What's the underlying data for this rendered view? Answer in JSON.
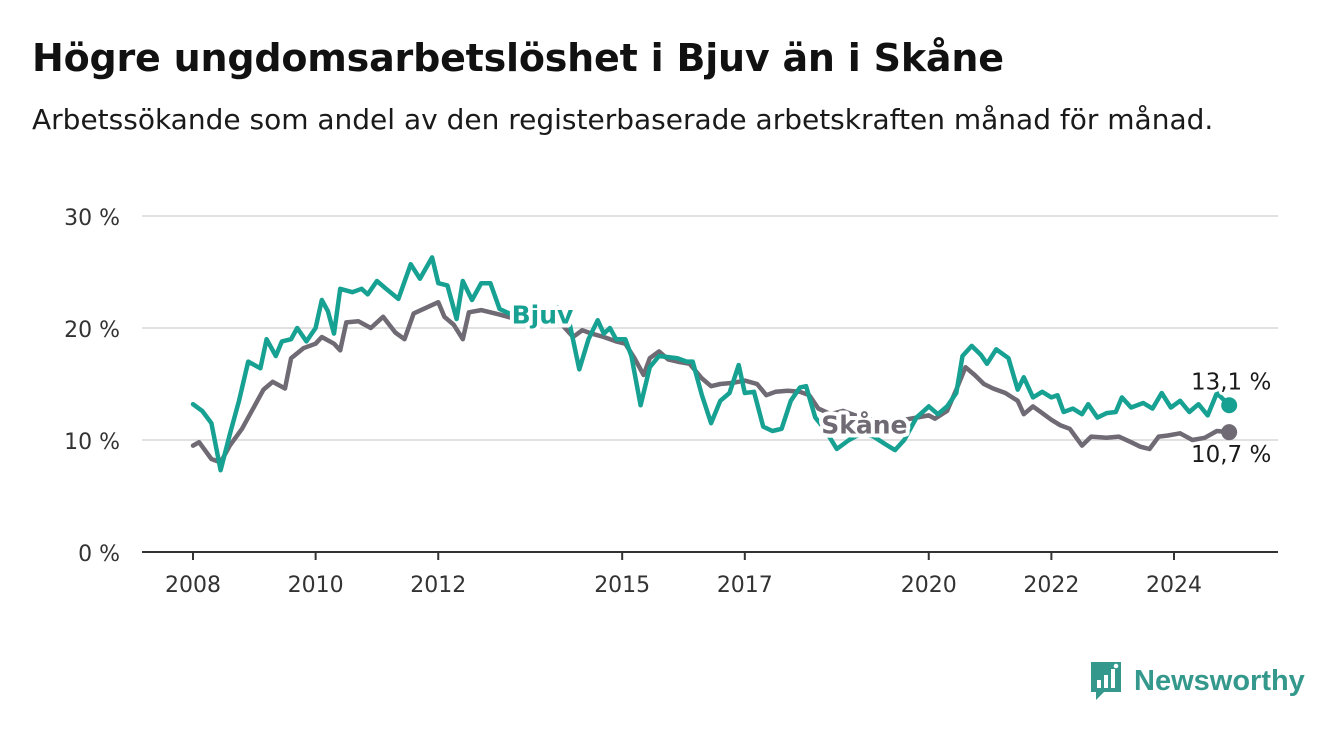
{
  "header": {
    "title": "Högre ungdomsarbetslöshet i Bjuv än i Skåne",
    "subtitle": "Arbetssökande som andel av den registerbaserade arbetskraften månad för månad."
  },
  "brand": {
    "name": "Newsworthy",
    "icon": "newsworthy-logo-icon",
    "color": "#34988c"
  },
  "chart_data": {
    "type": "line",
    "title": "Högre ungdomsarbetslöshet i Bjuv än i Skåne",
    "subtitle": "Arbetssökande som andel av den registerbaserade arbetskraften månad för månad.",
    "xlabel": "",
    "ylabel": "",
    "xlim": [
      2008,
      2026
    ],
    "ylim": [
      0,
      30
    ],
    "x_ticks": [
      {
        "value": 2008,
        "label": "2008"
      },
      {
        "value": 2010,
        "label": "2010"
      },
      {
        "value": 2012,
        "label": "2012"
      },
      {
        "value": 2015,
        "label": "2015"
      },
      {
        "value": 2017,
        "label": "2017"
      },
      {
        "value": 2020,
        "label": "2020"
      },
      {
        "value": 2022,
        "label": "2022"
      },
      {
        "value": 2024,
        "label": "2024"
      }
    ],
    "y_ticks": [
      {
        "value": 0,
        "label": "0 %"
      },
      {
        "value": 10,
        "label": "10 %"
      },
      {
        "value": 20,
        "label": "20 %"
      },
      {
        "value": 30,
        "label": "30 %"
      }
    ],
    "grid": true,
    "legend": "inline labels",
    "series": [
      {
        "name": "Bjuv",
        "color": "#17a192",
        "end_label": "13,1 %",
        "label_at": [
          2013.7,
          20.4
        ],
        "points": [
          [
            2008.0,
            13.2
          ],
          [
            2008.15,
            12.6
          ],
          [
            2008.3,
            11.5
          ],
          [
            2008.45,
            7.3
          ],
          [
            2008.6,
            10.5
          ],
          [
            2008.75,
            13.5
          ],
          [
            2008.9,
            17.0
          ],
          [
            2009.1,
            16.4
          ],
          [
            2009.2,
            19.0
          ],
          [
            2009.35,
            17.5
          ],
          [
            2009.45,
            18.8
          ],
          [
            2009.6,
            19.0
          ],
          [
            2009.7,
            20.0
          ],
          [
            2009.85,
            18.8
          ],
          [
            2010.0,
            20.0
          ],
          [
            2010.1,
            22.5
          ],
          [
            2010.2,
            21.5
          ],
          [
            2010.3,
            19.5
          ],
          [
            2010.4,
            23.5
          ],
          [
            2010.6,
            23.2
          ],
          [
            2010.75,
            23.5
          ],
          [
            2010.85,
            23.0
          ],
          [
            2011.0,
            24.2
          ],
          [
            2011.15,
            23.5
          ],
          [
            2011.35,
            22.6
          ],
          [
            2011.55,
            25.7
          ],
          [
            2011.7,
            24.4
          ],
          [
            2011.9,
            26.3
          ],
          [
            2012.0,
            24.0
          ],
          [
            2012.15,
            23.8
          ],
          [
            2012.3,
            20.8
          ],
          [
            2012.4,
            24.2
          ],
          [
            2012.55,
            22.5
          ],
          [
            2012.7,
            24.0
          ],
          [
            2012.85,
            24.0
          ],
          [
            2013.0,
            21.7
          ],
          [
            2013.2,
            21.2
          ],
          [
            2013.4,
            20.3
          ],
          [
            2013.6,
            20.8
          ],
          [
            2013.8,
            21.5
          ],
          [
            2013.95,
            21.8
          ],
          [
            2014.1,
            21.5
          ],
          [
            2014.3,
            16.3
          ],
          [
            2014.45,
            19.0
          ],
          [
            2014.6,
            20.7
          ],
          [
            2014.7,
            19.5
          ],
          [
            2014.8,
            20.0
          ],
          [
            2014.9,
            19.0
          ],
          [
            2015.05,
            19.0
          ],
          [
            2015.15,
            17.5
          ],
          [
            2015.3,
            13.1
          ],
          [
            2015.45,
            16.5
          ],
          [
            2015.6,
            17.5
          ],
          [
            2015.75,
            17.4
          ],
          [
            2015.9,
            17.3
          ],
          [
            2016.05,
            17.0
          ],
          [
            2016.15,
            17.0
          ],
          [
            2016.3,
            14.0
          ],
          [
            2016.45,
            11.5
          ],
          [
            2016.6,
            13.5
          ],
          [
            2016.75,
            14.2
          ],
          [
            2016.9,
            16.7
          ],
          [
            2017.0,
            14.2
          ],
          [
            2017.15,
            14.3
          ],
          [
            2017.3,
            11.2
          ],
          [
            2017.45,
            10.8
          ],
          [
            2017.6,
            11.0
          ],
          [
            2017.75,
            13.5
          ],
          [
            2017.9,
            14.7
          ],
          [
            2018.0,
            14.8
          ],
          [
            2018.15,
            12.0
          ],
          [
            2018.3,
            11.0
          ],
          [
            2018.5,
            9.2
          ],
          [
            2018.7,
            10.0
          ],
          [
            2018.9,
            10.6
          ],
          [
            2019.1,
            10.3
          ],
          [
            2019.3,
            9.6
          ],
          [
            2019.45,
            9.1
          ],
          [
            2019.6,
            10.0
          ],
          [
            2019.8,
            12.0
          ],
          [
            2020.0,
            13.0
          ],
          [
            2020.15,
            12.3
          ],
          [
            2020.3,
            13.0
          ],
          [
            2020.45,
            14.2
          ],
          [
            2020.55,
            17.5
          ],
          [
            2020.7,
            18.4
          ],
          [
            2020.85,
            17.6
          ],
          [
            2020.95,
            16.8
          ],
          [
            2021.1,
            18.1
          ],
          [
            2021.3,
            17.3
          ],
          [
            2021.45,
            14.5
          ],
          [
            2021.55,
            15.6
          ],
          [
            2021.7,
            13.8
          ],
          [
            2021.85,
            14.3
          ],
          [
            2022.0,
            13.8
          ],
          [
            2022.1,
            14.0
          ],
          [
            2022.2,
            12.5
          ],
          [
            2022.35,
            12.8
          ],
          [
            2022.5,
            12.3
          ],
          [
            2022.6,
            13.2
          ],
          [
            2022.75,
            12.0
          ],
          [
            2022.9,
            12.4
          ],
          [
            2023.05,
            12.5
          ],
          [
            2023.15,
            13.8
          ],
          [
            2023.3,
            12.9
          ],
          [
            2023.5,
            13.3
          ],
          [
            2023.65,
            12.8
          ],
          [
            2023.8,
            14.2
          ],
          [
            2023.95,
            12.9
          ],
          [
            2024.1,
            13.5
          ],
          [
            2024.25,
            12.5
          ],
          [
            2024.4,
            13.2
          ],
          [
            2024.55,
            12.2
          ],
          [
            2024.7,
            14.2
          ],
          [
            2024.9,
            13.1
          ]
        ]
      },
      {
        "name": "Skåne",
        "color": "#6f6a73",
        "end_label": "10,7 %",
        "label_at": [
          2018.95,
          10.6
        ],
        "points": [
          [
            2008.0,
            9.5
          ],
          [
            2008.1,
            9.8
          ],
          [
            2008.3,
            8.3
          ],
          [
            2008.45,
            8.0
          ],
          [
            2008.6,
            9.5
          ],
          [
            2008.8,
            11.0
          ],
          [
            2009.0,
            13.0
          ],
          [
            2009.15,
            14.5
          ],
          [
            2009.3,
            15.2
          ],
          [
            2009.5,
            14.6
          ],
          [
            2009.6,
            17.3
          ],
          [
            2009.8,
            18.2
          ],
          [
            2010.0,
            18.6
          ],
          [
            2010.1,
            19.2
          ],
          [
            2010.3,
            18.6
          ],
          [
            2010.4,
            18.0
          ],
          [
            2010.5,
            20.5
          ],
          [
            2010.7,
            20.6
          ],
          [
            2010.9,
            20.0
          ],
          [
            2011.1,
            21.0
          ],
          [
            2011.3,
            19.6
          ],
          [
            2011.45,
            19.0
          ],
          [
            2011.6,
            21.3
          ],
          [
            2011.8,
            21.8
          ],
          [
            2012.0,
            22.3
          ],
          [
            2012.1,
            21.0
          ],
          [
            2012.25,
            20.3
          ],
          [
            2012.4,
            19.0
          ],
          [
            2012.5,
            21.4
          ],
          [
            2012.7,
            21.6
          ],
          [
            2013.0,
            21.2
          ],
          [
            2013.2,
            20.9
          ],
          [
            2013.4,
            20.6
          ],
          [
            2013.6,
            21.0
          ],
          [
            2013.8,
            20.8
          ],
          [
            2014.0,
            20.4
          ],
          [
            2014.2,
            19.2
          ],
          [
            2014.35,
            19.8
          ],
          [
            2014.5,
            19.5
          ],
          [
            2014.7,
            19.2
          ],
          [
            2014.9,
            18.8
          ],
          [
            2015.05,
            18.6
          ],
          [
            2015.2,
            17.3
          ],
          [
            2015.35,
            15.8
          ],
          [
            2015.45,
            17.3
          ],
          [
            2015.6,
            17.9
          ],
          [
            2015.75,
            17.2
          ],
          [
            2015.9,
            17.0
          ],
          [
            2016.1,
            16.8
          ],
          [
            2016.3,
            15.5
          ],
          [
            2016.45,
            14.8
          ],
          [
            2016.6,
            15.0
          ],
          [
            2016.8,
            15.1
          ],
          [
            2017.0,
            15.3
          ],
          [
            2017.2,
            15.0
          ],
          [
            2017.35,
            14.0
          ],
          [
            2017.5,
            14.3
          ],
          [
            2017.7,
            14.4
          ],
          [
            2017.9,
            14.3
          ],
          [
            2018.05,
            14.0
          ],
          [
            2018.2,
            12.8
          ],
          [
            2018.4,
            12.3
          ],
          [
            2018.6,
            12.6
          ],
          [
            2018.9,
            12.0
          ],
          [
            2019.1,
            11.8
          ],
          [
            2019.4,
            11.6
          ],
          [
            2019.6,
            11.8
          ],
          [
            2019.8,
            12.0
          ],
          [
            2020.0,
            12.2
          ],
          [
            2020.1,
            11.9
          ],
          [
            2020.3,
            12.6
          ],
          [
            2020.45,
            14.5
          ],
          [
            2020.6,
            16.5
          ],
          [
            2020.75,
            15.8
          ],
          [
            2020.9,
            15.0
          ],
          [
            2021.05,
            14.6
          ],
          [
            2021.25,
            14.2
          ],
          [
            2021.45,
            13.5
          ],
          [
            2021.55,
            12.3
          ],
          [
            2021.7,
            13.0
          ],
          [
            2021.85,
            12.4
          ],
          [
            2022.0,
            11.8
          ],
          [
            2022.15,
            11.3
          ],
          [
            2022.3,
            11.0
          ],
          [
            2022.5,
            9.5
          ],
          [
            2022.65,
            10.3
          ],
          [
            2022.9,
            10.2
          ],
          [
            2023.1,
            10.3
          ],
          [
            2023.3,
            9.8
          ],
          [
            2023.45,
            9.4
          ],
          [
            2023.6,
            9.2
          ],
          [
            2023.75,
            10.3
          ],
          [
            2023.9,
            10.4
          ],
          [
            2024.1,
            10.6
          ],
          [
            2024.3,
            10.0
          ],
          [
            2024.5,
            10.2
          ],
          [
            2024.7,
            10.8
          ],
          [
            2024.9,
            10.7
          ]
        ]
      }
    ]
  }
}
